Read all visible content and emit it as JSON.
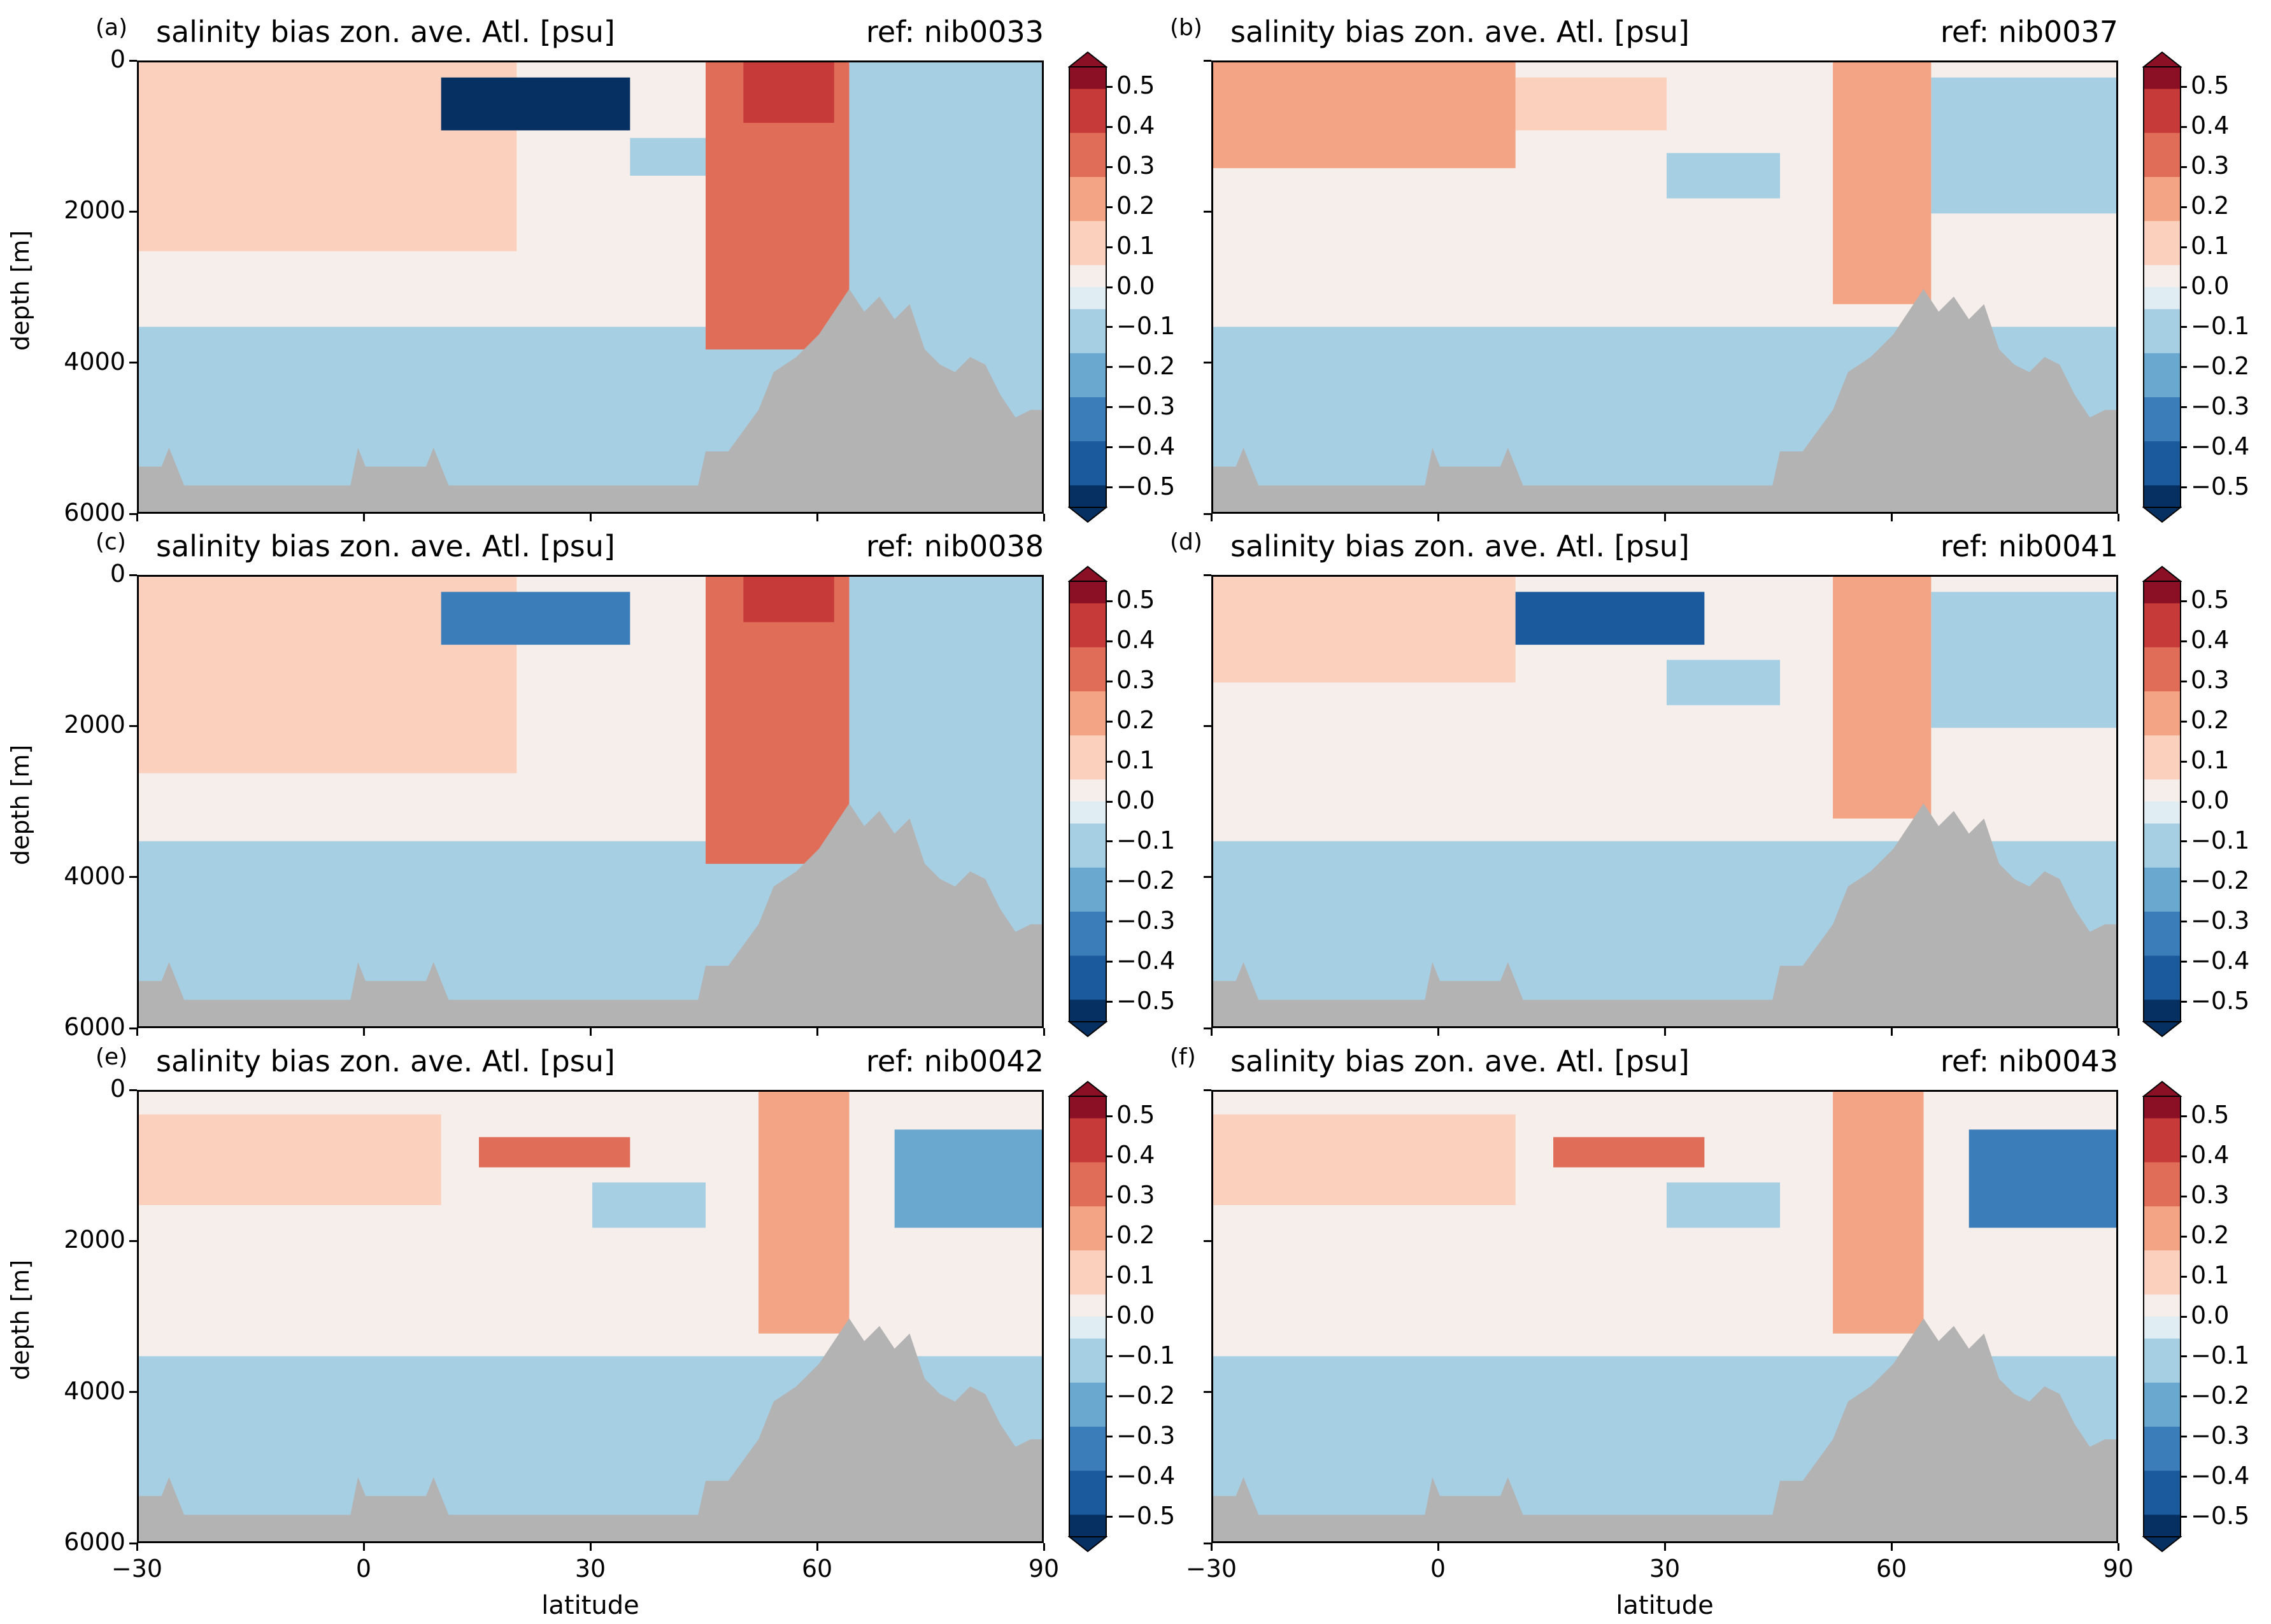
{
  "colors": {
    "neg5": "#053061",
    "neg4": "#1b5a9c",
    "neg3": "#3a7db8",
    "neg2": "#6ba8d0",
    "neg1": "#a7cfe4",
    "neg0": "#e0edf3",
    "pos0": "#f6eeea",
    "pos1": "#fbd1bd",
    "pos2": "#f2a485",
    "pos3": "#e06d58",
    "pos4": "#c63a39",
    "pos5": "#8b0f25",
    "land": "#b3b3b3"
  },
  "colorbar": {
    "labels": [
      "0.5",
      "0.4",
      "0.3",
      "0.2",
      "0.1",
      "0.0",
      "−0.1",
      "−0.2",
      "−0.3",
      "−0.4",
      "−0.5"
    ],
    "range": [
      -0.5,
      0.5
    ]
  },
  "axes": {
    "xlabel": "latitude",
    "ylabel": "depth [m]",
    "xticks": [
      "−30",
      "0",
      "30",
      "60",
      "90"
    ],
    "yticks": [
      "0",
      "2000",
      "4000",
      "6000"
    ]
  },
  "chart_data": [
    {
      "type": "heatmap",
      "panel": "(a)",
      "title": "salinity bias zon. ave. Atl. [psu]",
      "ref": "ref: nib0033",
      "xlim": [
        -30,
        90
      ],
      "ylim": [
        6000,
        0
      ],
      "xlabel": "",
      "ylabel": "depth [m]",
      "patches": [
        {
          "lat": [
            -30,
            20
          ],
          "depth": [
            0,
            2500
          ],
          "value": 0.15
        },
        {
          "lat": [
            10,
            35
          ],
          "depth": [
            200,
            900
          ],
          "value": -0.45
        },
        {
          "lat": [
            35,
            50
          ],
          "depth": [
            1000,
            1500
          ],
          "value": -0.1
        },
        {
          "lat": [
            45,
            64
          ],
          "depth": [
            0,
            3800
          ],
          "value": 0.3
        },
        {
          "lat": [
            50,
            62
          ],
          "depth": [
            0,
            800
          ],
          "value": 0.4
        },
        {
          "lat": [
            64,
            90
          ],
          "depth": [
            0,
            4600
          ],
          "value": -0.05
        },
        {
          "lat": [
            -30,
            90
          ],
          "depth": [
            3500,
            5600
          ],
          "value": -0.05
        }
      ]
    },
    {
      "type": "heatmap",
      "panel": "(b)",
      "title": "salinity bias zon. ave. Atl. [psu]",
      "ref": "ref: nib0037",
      "xlim": [
        -30,
        90
      ],
      "ylim": [
        6000,
        0
      ],
      "xlabel": "",
      "ylabel": "",
      "patches": [
        {
          "lat": [
            -30,
            10
          ],
          "depth": [
            0,
            1400
          ],
          "value": 0.2
        },
        {
          "lat": [
            10,
            30
          ],
          "depth": [
            200,
            900
          ],
          "value": 0.15
        },
        {
          "lat": [
            30,
            45
          ],
          "depth": [
            1200,
            1800
          ],
          "value": -0.1
        },
        {
          "lat": [
            52,
            65
          ],
          "depth": [
            0,
            3200
          ],
          "value": 0.2
        },
        {
          "lat": [
            65,
            90
          ],
          "depth": [
            200,
            2000
          ],
          "value": -0.1
        },
        {
          "lat": [
            -30,
            90
          ],
          "depth": [
            3500,
            5600
          ],
          "value": -0.05
        }
      ]
    },
    {
      "type": "heatmap",
      "panel": "(c)",
      "title": "salinity bias zon. ave. Atl. [psu]",
      "ref": "ref: nib0038",
      "xlim": [
        -30,
        90
      ],
      "ylim": [
        6000,
        0
      ],
      "xlabel": "",
      "ylabel": "depth [m]",
      "patches": [
        {
          "lat": [
            -30,
            20
          ],
          "depth": [
            0,
            2600
          ],
          "value": 0.15
        },
        {
          "lat": [
            10,
            35
          ],
          "depth": [
            200,
            900
          ],
          "value": -0.35
        },
        {
          "lat": [
            45,
            64
          ],
          "depth": [
            0,
            3800
          ],
          "value": 0.3
        },
        {
          "lat": [
            50,
            62
          ],
          "depth": [
            0,
            600
          ],
          "value": 0.4
        },
        {
          "lat": [
            64,
            90
          ],
          "depth": [
            0,
            4600
          ],
          "value": -0.05
        },
        {
          "lat": [
            -30,
            90
          ],
          "depth": [
            3500,
            5600
          ],
          "value": -0.05
        }
      ]
    },
    {
      "type": "heatmap",
      "panel": "(d)",
      "title": "salinity bias zon. ave. Atl. [psu]",
      "ref": "ref: nib0041",
      "xlim": [
        -30,
        90
      ],
      "ylim": [
        6000,
        0
      ],
      "xlabel": "",
      "ylabel": "",
      "patches": [
        {
          "lat": [
            -30,
            10
          ],
          "depth": [
            0,
            1400
          ],
          "value": 0.15
        },
        {
          "lat": [
            10,
            35
          ],
          "depth": [
            200,
            900
          ],
          "value": -0.4
        },
        {
          "lat": [
            30,
            45
          ],
          "depth": [
            1100,
            1700
          ],
          "value": -0.1
        },
        {
          "lat": [
            52,
            65
          ],
          "depth": [
            0,
            3200
          ],
          "value": 0.2
        },
        {
          "lat": [
            65,
            90
          ],
          "depth": [
            200,
            2000
          ],
          "value": -0.1
        },
        {
          "lat": [
            -30,
            90
          ],
          "depth": [
            3500,
            5600
          ],
          "value": -0.05
        }
      ]
    },
    {
      "type": "heatmap",
      "panel": "(e)",
      "title": "salinity bias zon. ave. Atl. [psu]",
      "ref": "ref: nib0042",
      "xlim": [
        -30,
        90
      ],
      "ylim": [
        6000,
        0
      ],
      "xlabel": "latitude",
      "ylabel": "depth [m]",
      "patches": [
        {
          "lat": [
            -30,
            10
          ],
          "depth": [
            300,
            1500
          ],
          "value": 0.15
        },
        {
          "lat": [
            15,
            35
          ],
          "depth": [
            600,
            1000
          ],
          "value": 0.35
        },
        {
          "lat": [
            30,
            45
          ],
          "depth": [
            1200,
            1800
          ],
          "value": -0.1
        },
        {
          "lat": [
            52,
            64
          ],
          "depth": [
            0,
            3200
          ],
          "value": 0.2
        },
        {
          "lat": [
            70,
            90
          ],
          "depth": [
            500,
            1800
          ],
          "value": -0.2
        },
        {
          "lat": [
            -30,
            90
          ],
          "depth": [
            3500,
            5600
          ],
          "value": -0.05
        }
      ]
    },
    {
      "type": "heatmap",
      "panel": "(f)",
      "title": "salinity bias zon. ave. Atl. [psu]",
      "ref": "ref: nib0043",
      "xlim": [
        -30,
        90
      ],
      "ylim": [
        6000,
        0
      ],
      "xlabel": "latitude",
      "ylabel": "",
      "patches": [
        {
          "lat": [
            -30,
            10
          ],
          "depth": [
            300,
            1500
          ],
          "value": 0.15
        },
        {
          "lat": [
            15,
            35
          ],
          "depth": [
            600,
            1000
          ],
          "value": 0.35
        },
        {
          "lat": [
            30,
            45
          ],
          "depth": [
            1200,
            1800
          ],
          "value": -0.1
        },
        {
          "lat": [
            52,
            64
          ],
          "depth": [
            0,
            3200
          ],
          "value": 0.2
        },
        {
          "lat": [
            70,
            90
          ],
          "depth": [
            500,
            1800
          ],
          "value": -0.25
        },
        {
          "lat": [
            -30,
            90
          ],
          "depth": [
            3500,
            5600
          ],
          "value": -0.05
        }
      ]
    }
  ],
  "bathymetry": [
    [
      -30,
      5350
    ],
    [
      -27,
      5350
    ],
    [
      -26,
      5100
    ],
    [
      -25,
      5350
    ],
    [
      -24,
      5600
    ],
    [
      -10,
      5600
    ],
    [
      -2,
      5600
    ],
    [
      -1,
      5100
    ],
    [
      0,
      5350
    ],
    [
      8,
      5350
    ],
    [
      9,
      5100
    ],
    [
      10,
      5350
    ],
    [
      11,
      5600
    ],
    [
      40,
      5600
    ],
    [
      44,
      5600
    ],
    [
      45,
      5150
    ],
    [
      48,
      5150
    ],
    [
      52,
      4600
    ],
    [
      54,
      4100
    ],
    [
      57,
      3900
    ],
    [
      60,
      3600
    ],
    [
      62,
      3300
    ],
    [
      64,
      3000
    ],
    [
      66,
      3300
    ],
    [
      68,
      3100
    ],
    [
      70,
      3400
    ],
    [
      72,
      3200
    ],
    [
      74,
      3800
    ],
    [
      76,
      4000
    ],
    [
      78,
      4100
    ],
    [
      80,
      3900
    ],
    [
      82,
      4000
    ],
    [
      84,
      4400
    ],
    [
      86,
      4700
    ],
    [
      88,
      4600
    ],
    [
      90,
      4600
    ]
  ]
}
